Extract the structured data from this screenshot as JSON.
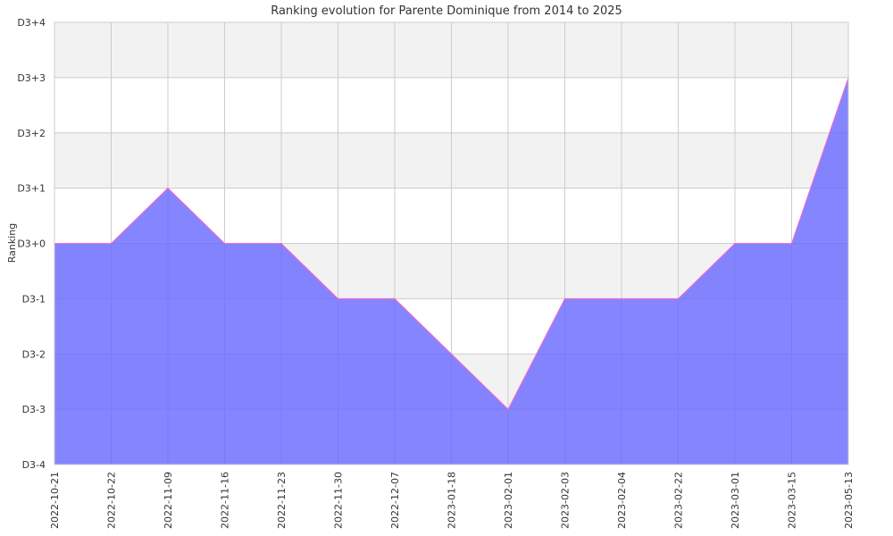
{
  "chart_data": {
    "type": "area",
    "title": "Ranking evolution for Parente Dominique from 2014 to 2025",
    "xlabel": "",
    "ylabel": "Ranking",
    "x": [
      "2022-10-21",
      "2022-10-22",
      "2022-11-09",
      "2022-11-16",
      "2022-11-23",
      "2022-11-30",
      "2022-12-07",
      "2023-01-18",
      "2023-02-01",
      "2023-02-03",
      "2023-02-04",
      "2023-02-22",
      "2023-03-01",
      "2023-03-15",
      "2023-05-13"
    ],
    "values": [
      0,
      0,
      1,
      0,
      0,
      -1,
      -1,
      -2,
      -3,
      -1,
      -1,
      -1,
      0,
      0,
      3
    ],
    "y_ticks": [
      "D3-4",
      "D3-3",
      "D3-2",
      "D3-1",
      "D3+0",
      "D3+1",
      "D3+2",
      "D3+3",
      "D3+4"
    ],
    "ylim": [
      -4,
      4
    ],
    "grid": true,
    "colors": {
      "fill": "#6666ff",
      "line": "#ff66cc",
      "band": "#f2f2f2",
      "grid": "#cccccc"
    }
  }
}
